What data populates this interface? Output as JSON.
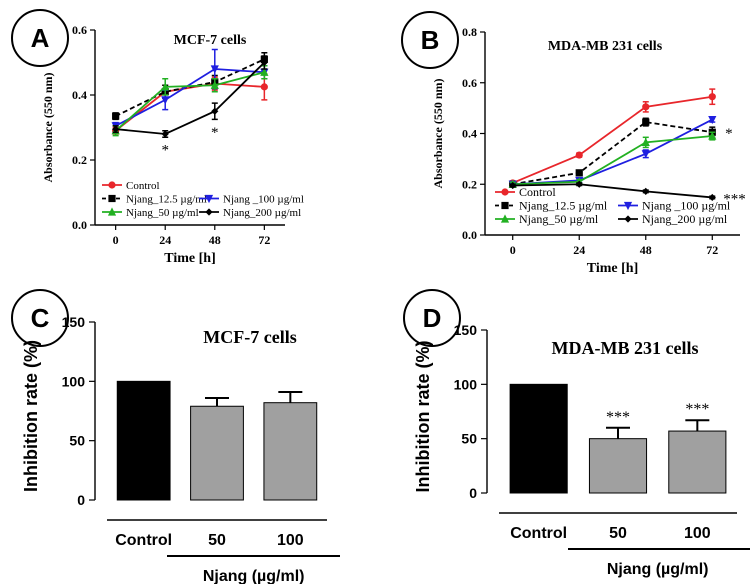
{
  "chart_data": [
    {
      "id": "A",
      "panel_label": "A",
      "type": "line",
      "title": "MCF-7 cells",
      "xlabel": "Time [h]",
      "ylabel": "Absorbance (550 nm)",
      "x": [
        0,
        24,
        48,
        72
      ],
      "xlim": [
        -10,
        82
      ],
      "ylim": [
        0,
        0.6
      ],
      "xticks": [
        "0",
        "24",
        "48",
        "72"
      ],
      "yticks": [
        "0.0",
        "0.2",
        "0.4",
        "0.6"
      ],
      "series": [
        {
          "name": "Control",
          "color": "#e8262b",
          "marker": "circle",
          "dash": "solid",
          "values": [
            0.29,
            0.41,
            0.435,
            0.425
          ],
          "errors": [
            0.01,
            0.02,
            0.02,
            0.04
          ]
        },
        {
          "name": "Njang_12.5 µg/ml",
          "color": "#000000",
          "marker": "square",
          "dash": "dashed",
          "values": [
            0.335,
            0.41,
            0.44,
            0.51
          ],
          "errors": [
            0.01,
            0.02,
            0.02,
            0.02
          ]
        },
        {
          "name": "Njang _100 µg/ml",
          "color": "#1f1fe0",
          "marker": "triangle-down",
          "dash": "solid",
          "values": [
            0.305,
            0.385,
            0.48,
            0.47
          ],
          "errors": [
            0.01,
            0.03,
            0.06,
            0.02
          ]
        },
        {
          "name": "Njang_50 µg/ml",
          "color": "#22b022",
          "marker": "triangle-up",
          "dash": "solid",
          "values": [
            0.29,
            0.425,
            0.43,
            0.47
          ],
          "errors": [
            0.015,
            0.025,
            0.02,
            0.02
          ]
        },
        {
          "name": "Njang_200 µg/ml",
          "color": "#000000",
          "marker": "diamond",
          "dash": "solid",
          "values": [
            0.295,
            0.28,
            0.35,
            0.5
          ],
          "errors": [
            0.01,
            0.01,
            0.025,
            0.02
          ]
        }
      ],
      "annotations": [
        {
          "text": "*",
          "x": 24,
          "y": 0.235
        },
        {
          "text": "*",
          "x": 48,
          "y": 0.29
        }
      ]
    },
    {
      "id": "B",
      "panel_label": "B",
      "type": "line",
      "title": "MDA-MB 231 cells",
      "xlabel": "Time [h]",
      "ylabel": "Absorbance (550 nm)",
      "x": [
        0,
        24,
        48,
        72
      ],
      "xlim": [
        -10,
        82
      ],
      "ylim": [
        0,
        0.8
      ],
      "xticks": [
        "0",
        "24",
        "48",
        "72"
      ],
      "yticks": [
        "0.0",
        "0.2",
        "0.4",
        "0.6",
        "0.8"
      ],
      "series": [
        {
          "name": "Control",
          "color": "#e8262b",
          "marker": "circle",
          "dash": "solid",
          "values": [
            0.205,
            0.315,
            0.505,
            0.545
          ],
          "errors": [
            0.008,
            0.008,
            0.02,
            0.03
          ]
        },
        {
          "name": "Njang_12.5 µg/ml",
          "color": "#000000",
          "marker": "square",
          "dash": "dashed",
          "values": [
            0.2,
            0.245,
            0.445,
            0.405
          ],
          "errors": [
            0.008,
            0.01,
            0.015,
            0.02
          ]
        },
        {
          "name": "Njang _100 µg/ml",
          "color": "#1f1fe0",
          "marker": "triangle-down",
          "dash": "solid",
          "values": [
            0.2,
            0.215,
            0.32,
            0.455
          ],
          "errors": [
            0.008,
            0.008,
            0.015,
            0.01
          ]
        },
        {
          "name": "Njang_50 µg/ml",
          "color": "#22b022",
          "marker": "triangle-up",
          "dash": "solid",
          "values": [
            0.2,
            0.21,
            0.365,
            0.39
          ],
          "errors": [
            0.008,
            0.008,
            0.02,
            0.015
          ]
        },
        {
          "name": "Njang_200 µg/ml",
          "color": "#000000",
          "marker": "diamond",
          "dash": "solid",
          "values": [
            0.195,
            0.2,
            0.172,
            0.148
          ],
          "errors": [
            0.005,
            0.005,
            0.005,
            0.005
          ]
        }
      ],
      "annotations": [
        {
          "text": "*",
          "x": 78,
          "y": 0.405
        },
        {
          "text": "***",
          "x": 80,
          "y": 0.148
        }
      ]
    },
    {
      "id": "C",
      "panel_label": "C",
      "type": "bar",
      "title": "MCF-7 cells",
      "ylabel": "Inhibition rate (%)",
      "xlabel": "Njang (µg/ml)",
      "ylim": [
        0,
        150
      ],
      "yticks": [
        "0",
        "50",
        "100",
        "150"
      ],
      "categories": [
        "Control",
        "50",
        "100"
      ],
      "values": [
        100,
        79,
        82
      ],
      "errors": [
        0,
        7,
        9
      ],
      "colors": [
        "#000000",
        "#a0a0a0",
        "#a0a0a0"
      ],
      "significance": [
        "",
        "",
        ""
      ]
    },
    {
      "id": "D",
      "panel_label": "D",
      "type": "bar",
      "title": "MDA-MB 231 cells",
      "ylabel": "Inhibition rate (%)",
      "xlabel": "Njang (µg/ml)",
      "ylim": [
        0,
        150
      ],
      "yticks": [
        "0",
        "50",
        "100",
        "150"
      ],
      "categories": [
        "Control",
        "50",
        "100"
      ],
      "values": [
        100,
        50,
        57
      ],
      "errors": [
        0,
        10,
        10
      ],
      "colors": [
        "#000000",
        "#a0a0a0",
        "#a0a0a0"
      ],
      "significance": [
        "",
        "***",
        "***"
      ]
    }
  ]
}
